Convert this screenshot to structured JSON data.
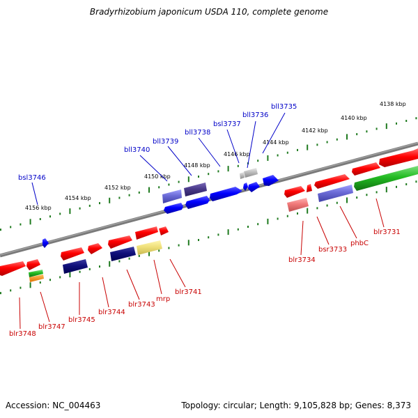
{
  "title": "Bradyrhizobium japonicum USDA 110, complete genome",
  "footer": {
    "accession": "Accession: NC_004463",
    "summary": "Topology: circular; Length: 9,105,828 bp; Genes: 8,373"
  },
  "colors": {
    "backbone": "#7a7a7a",
    "tick_dots": "#1f7a1f",
    "top_label": "#0000c8",
    "bottom_label": "#c80000"
  },
  "scale_labels": [
    "4138 kbp",
    "4140 kbp",
    "4142 kbp",
    "4144 kbp",
    "4146 kbp",
    "4148 kbp",
    "4150 kbp",
    "4152 kbp",
    "4154 kbp",
    "4156 kbp"
  ],
  "top_genes": [
    "bll3735",
    "bll3736",
    "bsl3737",
    "bll3738",
    "bll3739",
    "bll3740",
    "bsl3746"
  ],
  "bottom_genes": [
    "blr3731",
    "phbC",
    "bsr3733",
    "blr3734",
    "blr3741",
    "mrp",
    "blr3743",
    "blr3744",
    "blr3745",
    "blr3747",
    "blr3748"
  ]
}
